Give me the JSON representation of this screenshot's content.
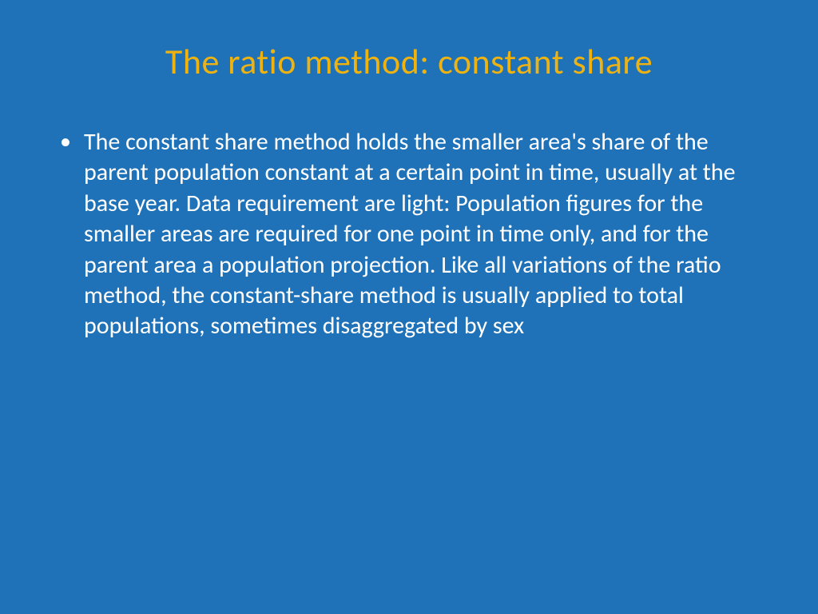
{
  "slide": {
    "title": "The ratio method: constant share",
    "bullet_text": "The constant share method holds the smaller area's share of the parent population constant at a certain point in time, usually at the base year. Data requirement are light: Population figures for the smaller areas are required for one point in time only, and  for the parent area a population projection. Like all variations of the ratio method, the constant-share method is usually applied to total populations, sometimes disaggregated by sex",
    "background_color": "#1f72b8",
    "title_color": "#eeb211",
    "text_color": "#ffffff",
    "title_fontsize": 44,
    "body_fontsize": 30
  }
}
